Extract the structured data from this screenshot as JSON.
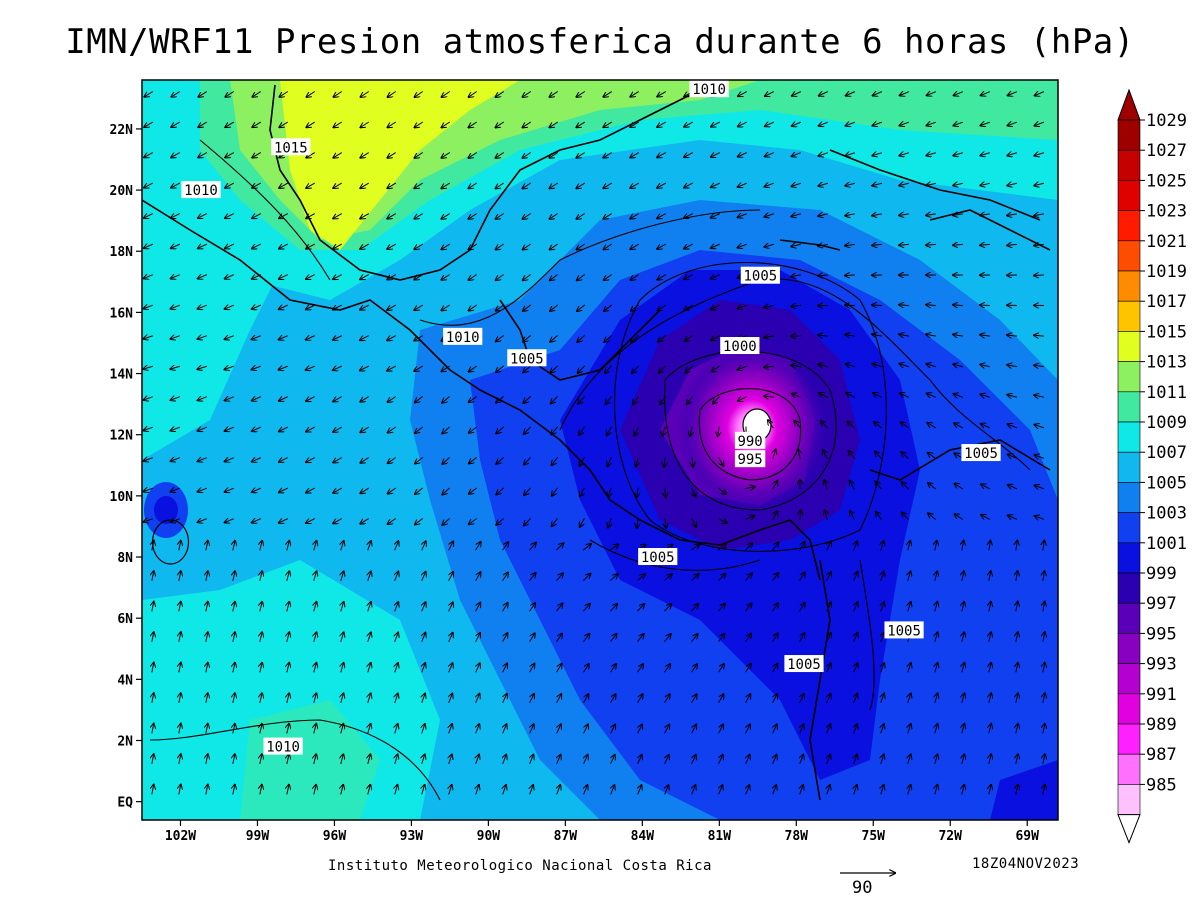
{
  "title": "IMN/WRF11 Presion atmosferica durante 6 horas (hPa)",
  "footer": {
    "institution": "Instituto Meteorologico Nacional Costa Rica",
    "datetime": "18Z04NOV2023",
    "reference_vector_value": "90"
  },
  "axes": {
    "lon_ticks": [
      "102W",
      "99W",
      "96W",
      "93W",
      "90W",
      "87W",
      "84W",
      "81W",
      "78W",
      "75W",
      "72W",
      "69W"
    ],
    "lat_ticks": [
      "22N",
      "20N",
      "18N",
      "16N",
      "14N",
      "12N",
      "10N",
      "8N",
      "6N",
      "4N",
      "2N",
      "EQ"
    ]
  },
  "colorbar": {
    "labels": [
      "1029",
      "1027",
      "1025",
      "1023",
      "1021",
      "1019",
      "1017",
      "1015",
      "1013",
      "1011",
      "1009",
      "1007",
      "1005",
      "1003",
      "1001",
      "999",
      "997",
      "995",
      "993",
      "991",
      "989",
      "987",
      "985"
    ],
    "colors": [
      "#9e0000",
      "#c40000",
      "#e00000",
      "#ff1a00",
      "#ff4d00",
      "#ff8c00",
      "#ffc400",
      "#e0ff20",
      "#8cf060",
      "#40e8a0",
      "#10e8e8",
      "#10b8f0",
      "#1080f0",
      "#1040f0",
      "#0a10e0",
      "#2a00b0",
      "#5a00b8",
      "#8800c0",
      "#b400d0",
      "#e000e0",
      "#ff20ff",
      "#ff70ff",
      "#ffc0ff"
    ]
  },
  "contour_labels": [
    {
      "text": "1010",
      "lon": -81.4,
      "lat": 23.3
    },
    {
      "text": "1015",
      "lon": -97.7,
      "lat": 21.4
    },
    {
      "text": "1010",
      "lon": -101.2,
      "lat": 20.0
    },
    {
      "text": "1005",
      "lon": -79.4,
      "lat": 17.2
    },
    {
      "text": "1010",
      "lon": -91.0,
      "lat": 15.2
    },
    {
      "text": "1005",
      "lon": -88.5,
      "lat": 14.5
    },
    {
      "text": "1000",
      "lon": -80.2,
      "lat": 14.9
    },
    {
      "text": "990",
      "lon": -79.8,
      "lat": 11.8
    },
    {
      "text": "995",
      "lon": -79.8,
      "lat": 11.2
    },
    {
      "text": "1005",
      "lon": -70.8,
      "lat": 11.4
    },
    {
      "text": "1005",
      "lon": -83.4,
      "lat": 8.0
    },
    {
      "text": "1005",
      "lon": -73.8,
      "lat": 5.6
    },
    {
      "text": "1005",
      "lon": -77.7,
      "lat": 4.5
    },
    {
      "text": "1010",
      "lon": -98.0,
      "lat": 1.8
    }
  ],
  "low_center": {
    "lon": -79.6,
    "lat": 12.3
  }
}
